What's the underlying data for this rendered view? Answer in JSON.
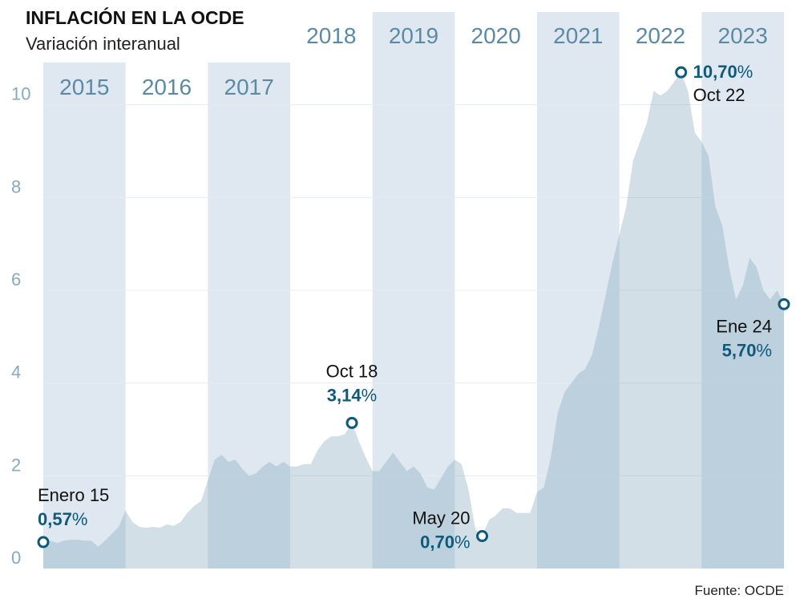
{
  "chart_data": {
    "type": "area",
    "title": "INFLACIÓN EN LA OCDE",
    "subtitle": "Variación interanual",
    "source": "Fuente: OCDE",
    "year_bands": [
      2015,
      2016,
      2017,
      2018,
      2019,
      2020,
      2021,
      2022,
      2023
    ],
    "x": [
      2015,
      2015.083,
      2015.167,
      2015.25,
      2015.333,
      2015.417,
      2015.5,
      2015.583,
      2015.667,
      2015.75,
      2015.833,
      2015.917,
      2016,
      2016.083,
      2016.167,
      2016.25,
      2016.333,
      2016.417,
      2016.5,
      2016.583,
      2016.667,
      2016.75,
      2016.833,
      2016.917,
      2017,
      2017.083,
      2017.167,
      2017.25,
      2017.333,
      2017.417,
      2017.5,
      2017.583,
      2017.667,
      2017.75,
      2017.833,
      2017.917,
      2018,
      2018.083,
      2018.167,
      2018.25,
      2018.333,
      2018.417,
      2018.5,
      2018.583,
      2018.667,
      2018.75,
      2018.833,
      2018.917,
      2019,
      2019.083,
      2019.167,
      2019.25,
      2019.333,
      2019.417,
      2019.5,
      2019.583,
      2019.667,
      2019.75,
      2019.833,
      2019.917,
      2020,
      2020.083,
      2020.167,
      2020.25,
      2020.333,
      2020.417,
      2020.5,
      2020.583,
      2020.667,
      2020.75,
      2020.833,
      2020.917,
      2021,
      2021.083,
      2021.167,
      2021.25,
      2021.333,
      2021.417,
      2021.5,
      2021.583,
      2021.667,
      2021.75,
      2021.833,
      2021.917,
      2022,
      2022.083,
      2022.167,
      2022.25,
      2022.333,
      2022.417,
      2022.5,
      2022.583,
      2022.667,
      2022.75,
      2022.833,
      2022.917,
      2023,
      2023.083,
      2023.167,
      2023.25,
      2023.333,
      2023.417,
      2023.5,
      2023.583,
      2023.667,
      2023.75,
      2023.833,
      2023.917,
      2024
    ],
    "values": [
      0.57,
      0.6,
      0.55,
      0.6,
      0.62,
      0.62,
      0.6,
      0.6,
      0.47,
      0.6,
      0.75,
      0.9,
      1.25,
      1.0,
      0.9,
      0.88,
      0.9,
      0.88,
      0.95,
      0.92,
      1.0,
      1.2,
      1.35,
      1.45,
      1.9,
      2.35,
      2.45,
      2.3,
      2.35,
      2.15,
      2.0,
      2.05,
      2.2,
      2.3,
      2.2,
      2.3,
      2.2,
      2.2,
      2.25,
      2.25,
      2.55,
      2.75,
      2.85,
      2.85,
      2.9,
      3.14,
      2.75,
      2.4,
      2.1,
      2.1,
      2.3,
      2.5,
      2.3,
      2.1,
      2.2,
      2.05,
      1.75,
      1.7,
      1.95,
      2.2,
      2.35,
      2.25,
      1.7,
      0.85,
      0.7,
      1.05,
      1.15,
      1.3,
      1.3,
      1.2,
      1.2,
      1.2,
      1.65,
      1.75,
      2.4,
      3.35,
      3.8,
      4.0,
      4.2,
      4.3,
      4.6,
      5.2,
      5.9,
      6.6,
      7.2,
      7.8,
      8.8,
      9.2,
      9.6,
      10.3,
      10.2,
      10.3,
      10.5,
      10.7,
      10.3,
      9.4,
      9.2,
      8.9,
      7.8,
      7.4,
      6.5,
      5.8,
      6.1,
      6.7,
      6.5,
      6.0,
      5.8,
      6.0,
      5.7
    ],
    "color": "#7fa3bb",
    "xlim": [
      2015,
      2024
    ],
    "ylim": [
      0,
      12
    ],
    "yticks": [
      0,
      2,
      4,
      6,
      8,
      10
    ],
    "grid": true,
    "annotations": [
      {
        "x": 2015,
        "value": 0.57,
        "date_label": "Enero 15",
        "value_label": "0,57",
        "unit": "%"
      },
      {
        "x": 2018.75,
        "value": 3.14,
        "date_label": "Oct 18",
        "value_label": "3,14",
        "unit": "%"
      },
      {
        "x": 2020.333,
        "value": 0.7,
        "date_label": "May 20",
        "value_label": "0,70",
        "unit": "%"
      },
      {
        "x": 2022.75,
        "value": 10.7,
        "date_label": "Oct 22",
        "value_label": "10,70",
        "unit": "%"
      },
      {
        "x": 2024,
        "value": 5.7,
        "date_label": "Ene 24",
        "value_label": "5,70",
        "unit": "%"
      }
    ]
  }
}
